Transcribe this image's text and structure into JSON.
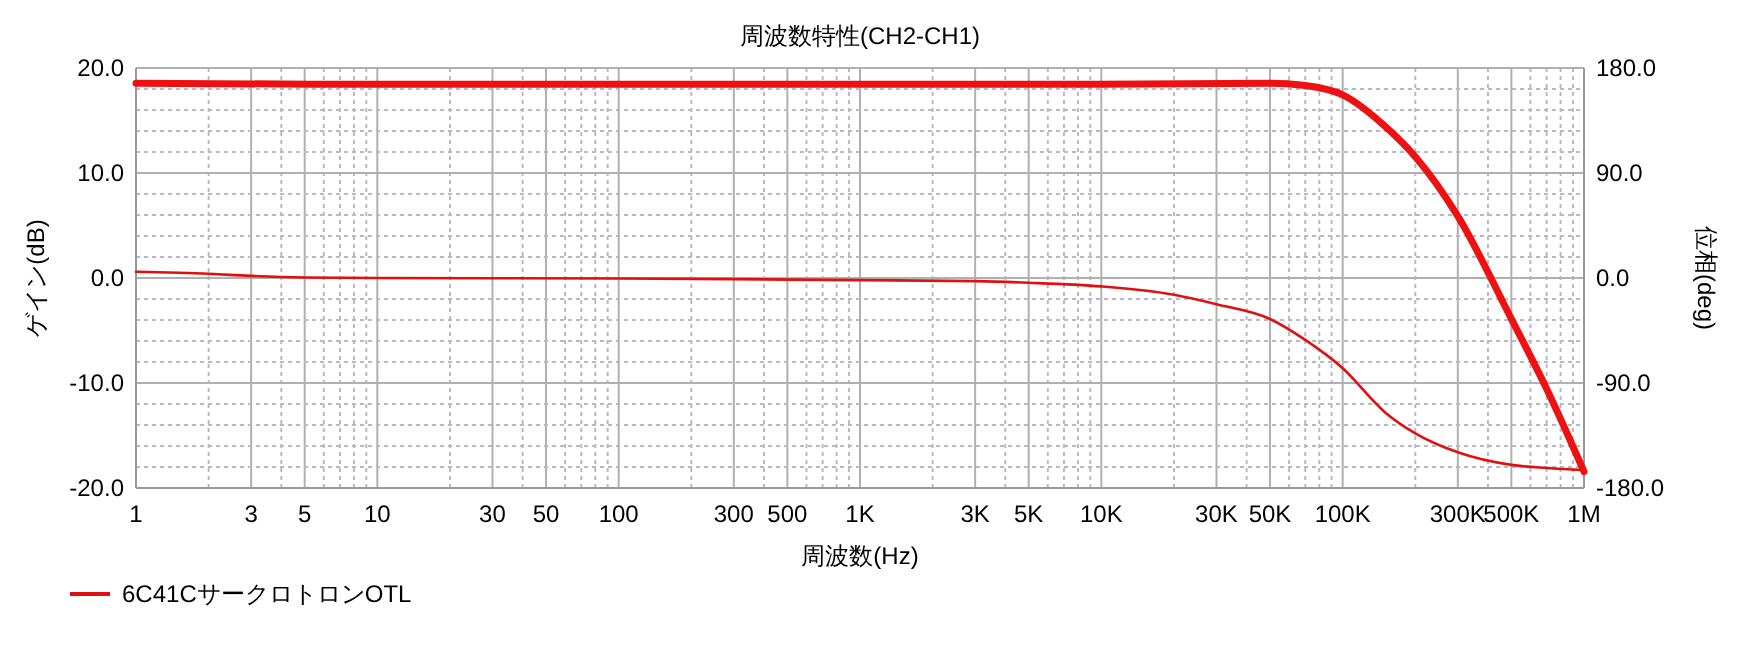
{
  "chart_data": {
    "type": "line",
    "title": "周波数特性(CH2-CH1)",
    "xlabel": "周波数(Hz)",
    "ylabel": "ゲイン(dB)",
    "y2label": "位相(deg)",
    "log": "x",
    "grid": true,
    "legend": "bottom left",
    "line_style": "solid",
    "marker": "none",
    "xlim": [
      1,
      1000000
    ],
    "xticks": [
      1,
      {
        "value": 2,
        "label": null
      },
      3,
      {
        "value": 4,
        "label": null
      },
      5,
      {
        "value": 6,
        "label": null
      },
      {
        "value": 7,
        "label": null
      },
      {
        "value": 8,
        "label": null
      },
      {
        "value": 9,
        "label": null
      },
      10,
      {
        "value": 20,
        "label": null
      },
      30,
      {
        "value": 40,
        "label": null
      },
      50,
      {
        "value": 60,
        "label": null
      },
      {
        "value": 70,
        "label": null
      },
      {
        "value": 80,
        "label": null
      },
      {
        "value": 90,
        "label": null
      },
      100,
      {
        "value": 200,
        "label": null
      },
      300,
      {
        "value": 400,
        "label": null
      },
      500,
      {
        "value": 600,
        "label": null
      },
      {
        "value": 700,
        "label": null
      },
      {
        "value": 800,
        "label": null
      },
      {
        "value": 900,
        "label": null
      },
      {
        "value": 1000,
        "label": "1K"
      },
      {
        "value": 2000,
        "label": null
      },
      {
        "value": 3000,
        "label": "3K"
      },
      {
        "value": 4000,
        "label": null
      },
      {
        "value": 5000,
        "label": "5K"
      },
      {
        "value": 6000,
        "label": null
      },
      {
        "value": 7000,
        "label": null
      },
      {
        "value": 8000,
        "label": null
      },
      {
        "value": 9000,
        "label": null
      },
      {
        "value": 10000,
        "label": "10K"
      },
      {
        "value": 20000,
        "label": null
      },
      {
        "value": 30000,
        "label": "30K"
      },
      {
        "value": 40000,
        "label": null
      },
      {
        "value": 50000,
        "label": "50K"
      },
      {
        "value": 60000,
        "label": null
      },
      {
        "value": 70000,
        "label": null
      },
      {
        "value": 80000,
        "label": null
      },
      {
        "value": 90000,
        "label": null
      },
      {
        "value": 100000,
        "label": "100K"
      },
      {
        "value": 200000,
        "label": null
      },
      {
        "value": 300000,
        "label": "300K"
      },
      {
        "value": 400000,
        "label": null
      },
      {
        "value": 500000,
        "label": "500K"
      },
      {
        "value": 600000,
        "label": null
      },
      {
        "value": 700000,
        "label": null
      },
      {
        "value": 800000,
        "label": null
      },
      {
        "value": 900000,
        "label": null
      },
      {
        "value": 1000000,
        "label": "1M"
      }
    ],
    "ylim": [
      -20,
      20
    ],
    "yticks": [
      {
        "value": -20,
        "label": "-20.0"
      },
      {
        "value": -18,
        "label": null
      },
      {
        "value": -16,
        "label": null
      },
      {
        "value": -14,
        "label": null
      },
      {
        "value": -12,
        "label": null
      },
      {
        "value": -10,
        "label": "-10.0"
      },
      {
        "value": -8,
        "label": null
      },
      {
        "value": -6,
        "label": null
      },
      {
        "value": -4,
        "label": null
      },
      {
        "value": -2,
        "label": null
      },
      {
        "value": 0,
        "label": "0.0"
      },
      {
        "value": 2,
        "label": null
      },
      {
        "value": 4,
        "label": null
      },
      {
        "value": 6,
        "label": null
      },
      {
        "value": 8,
        "label": null
      },
      {
        "value": 10,
        "label": "10.0"
      },
      {
        "value": 12,
        "label": null
      },
      {
        "value": 14,
        "label": null
      },
      {
        "value": 16,
        "label": null
      },
      {
        "value": 18,
        "label": null
      },
      {
        "value": 20,
        "label": "20.0"
      }
    ],
    "y2lim": [
      -180,
      180
    ],
    "y2ticks": [
      {
        "value": -180,
        "label": "-180.0"
      },
      {
        "value": -90,
        "label": "-90.0"
      },
      {
        "value": 0,
        "label": "0.0"
      },
      {
        "value": 90,
        "label": "90.0"
      },
      {
        "value": 180,
        "label": "180.0"
      }
    ],
    "series": [
      {
        "name": "6C41CサークロトロンOTL",
        "color": "#e01010",
        "x": [
          1,
          2,
          3,
          5,
          10,
          100,
          1000,
          3000,
          5000,
          10000,
          20000,
          30000,
          50000,
          70000,
          100000,
          150000,
          200000,
          300000,
          500000,
          700000,
          1000000
        ],
        "values": [
          0.6,
          0.4,
          0.2,
          0.05,
          0,
          -0.05,
          -0.2,
          -0.3,
          -0.45,
          -0.8,
          -1.6,
          -2.5,
          -3.9,
          -5.9,
          -8.6,
          -12.8,
          -14.8,
          -16.6,
          -17.8,
          -18.1,
          -18.3
        ]
      },
      {
        "color": "#ee1111",
        "axis": "y2",
        "x": [
          1,
          10,
          100,
          1000,
          10000,
          50000,
          70000,
          100000,
          150000,
          200000,
          300000,
          500000,
          700000,
          1000000
        ],
        "values": [
          167,
          166,
          166,
          166,
          166,
          167,
          165,
          157,
          130,
          104,
          53,
          -35,
          -95,
          -166
        ]
      }
    ]
  }
}
